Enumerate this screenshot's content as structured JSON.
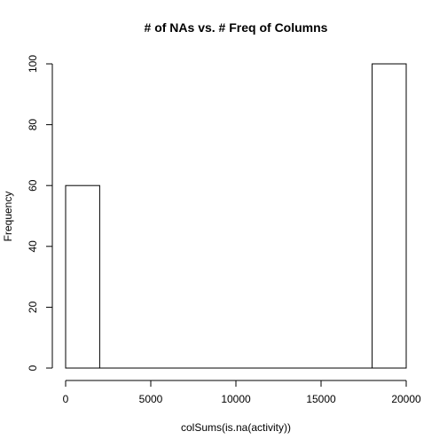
{
  "chart_data": {
    "type": "bar",
    "title": "# of NAs vs. # Freq of Columns",
    "xlabel": "colSums(is.na(activity))",
    "ylabel": "Frequency",
    "xlim": [
      0,
      20000
    ],
    "ylim": [
      0,
      100
    ],
    "x_ticks": [
      0,
      5000,
      10000,
      15000,
      20000
    ],
    "y_ticks": [
      0,
      20,
      40,
      60,
      80,
      100
    ],
    "bins": [
      {
        "start": 0,
        "end": 2000,
        "count": 60
      },
      {
        "start": 2000,
        "end": 4000,
        "count": 0
      },
      {
        "start": 4000,
        "end": 6000,
        "count": 0
      },
      {
        "start": 6000,
        "end": 8000,
        "count": 0
      },
      {
        "start": 8000,
        "end": 10000,
        "count": 0
      },
      {
        "start": 10000,
        "end": 12000,
        "count": 0
      },
      {
        "start": 12000,
        "end": 14000,
        "count": 0
      },
      {
        "start": 14000,
        "end": 16000,
        "count": 0
      },
      {
        "start": 16000,
        "end": 18000,
        "count": 0
      },
      {
        "start": 18000,
        "end": 20000,
        "count": 100
      }
    ],
    "grid": false,
    "colors": {
      "bar_fill": "#ffffff",
      "bar_stroke": "#000000"
    }
  }
}
